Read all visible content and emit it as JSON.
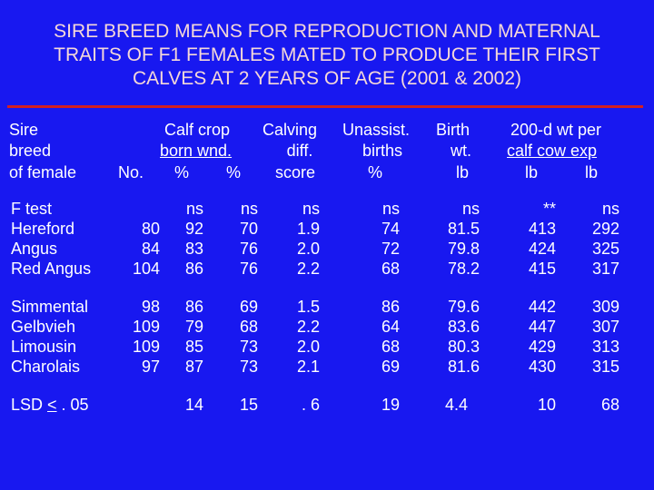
{
  "title": {
    "line1": "SIRE BREED MEANS FOR REPRODUCTION AND MATERNAL",
    "line2": "TRAITS OF F1 FEMALES MATED TO PRODUCE THEIR FIRST",
    "line3": "CALVES AT 2 YEARS OF AGE (2001 & 2002)"
  },
  "header": {
    "sire": [
      "Sire",
      "breed",
      "of female"
    ],
    "no": "No.",
    "calf_crop": "Calf crop",
    "calf_crop_sub": "born   wnd.",
    "pct1": "%",
    "pct2": "%",
    "calving": "Calving",
    "calving_sub": "diff.",
    "calving_sub2": "score",
    "unassist": "Unassist.",
    "unassist_sub": "births",
    "unassist_sub2": "%",
    "birth": "Birth",
    "birth_sub": "wt.",
    "birth_sub2": "lb",
    "wt200": "200-d wt per",
    "wt200_sub": "calf  cow exp",
    "lb1": "lb",
    "lb2": "lb"
  },
  "ftest": {
    "label": "F test",
    "values": [
      "ns",
      "ns",
      "ns",
      "ns",
      "ns",
      "**",
      "ns"
    ]
  },
  "group1": [
    {
      "breed": "Hereford",
      "no": "80",
      "values": [
        "92",
        "70",
        "1.9",
        "74",
        "81.5",
        "413",
        "292"
      ]
    },
    {
      "breed": "Angus",
      "no": "84",
      "values": [
        "83",
        "76",
        "2.0",
        "72",
        "79.8",
        "424",
        "325"
      ]
    },
    {
      "breed": "Red Angus",
      "no": "104",
      "values": [
        "86",
        "76",
        "2.2",
        "68",
        "78.2",
        "415",
        "317"
      ]
    }
  ],
  "group2": [
    {
      "breed": "Simmental",
      "no": "98",
      "values": [
        "86",
        "69",
        "1.5",
        "86",
        "79.6",
        "442",
        "309"
      ]
    },
    {
      "breed": "Gelbvieh",
      "no": "109",
      "values": [
        "79",
        "68",
        "2.2",
        "64",
        "83.6",
        "447",
        "307"
      ]
    },
    {
      "breed": "Limousin",
      "no": "109",
      "values": [
        "85",
        "73",
        "2.0",
        "68",
        "80.3",
        "429",
        "313"
      ]
    },
    {
      "breed": "Charolais",
      "no": "97",
      "values": [
        "87",
        "73",
        "2.1",
        "69",
        "81.6",
        "430",
        "315"
      ]
    }
  ],
  "lsd": {
    "prefix": "LSD ",
    "lt": "<",
    "suffix": " . 05",
    "values": [
      "14",
      "15",
      ". 6",
      "19",
      "4.4",
      "10",
      "68"
    ]
  }
}
